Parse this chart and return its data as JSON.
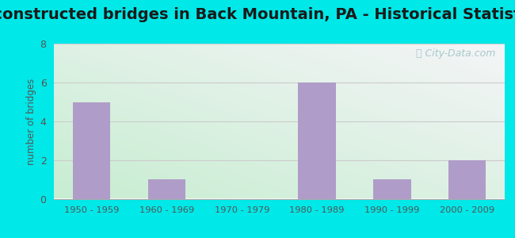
{
  "title": "Reconstructed bridges in Back Mountain, PA - Historical Statistics",
  "categories": [
    "1950 - 1959",
    "1960 - 1969",
    "1970 - 1979",
    "1980 - 1989",
    "1990 - 1999",
    "2000 - 2009"
  ],
  "values": [
    5,
    1,
    0,
    6,
    1,
    2
  ],
  "bar_color": "#b09cc8",
  "ylabel": "number of bridges",
  "ylim": [
    0,
    8
  ],
  "yticks": [
    0,
    2,
    4,
    6,
    8
  ],
  "background_outer": "#00e8e8",
  "background_inner_topleft": "#e8f5ee",
  "background_inner_topright": "#f0f0f0",
  "background_inner_bottomleft": "#c8ecd4",
  "background_inner_bottomright": "#ddeedd",
  "title_fontsize": 14,
  "title_color": "#1a1a1a",
  "axis_label_color": "#555555",
  "tick_color": "#555555",
  "watermark_text": "City-Data.com",
  "watermark_color": "#a8c8cc",
  "bar_width": 0.5,
  "grid_color": "#cccccc",
  "grid_linewidth": 0.8
}
